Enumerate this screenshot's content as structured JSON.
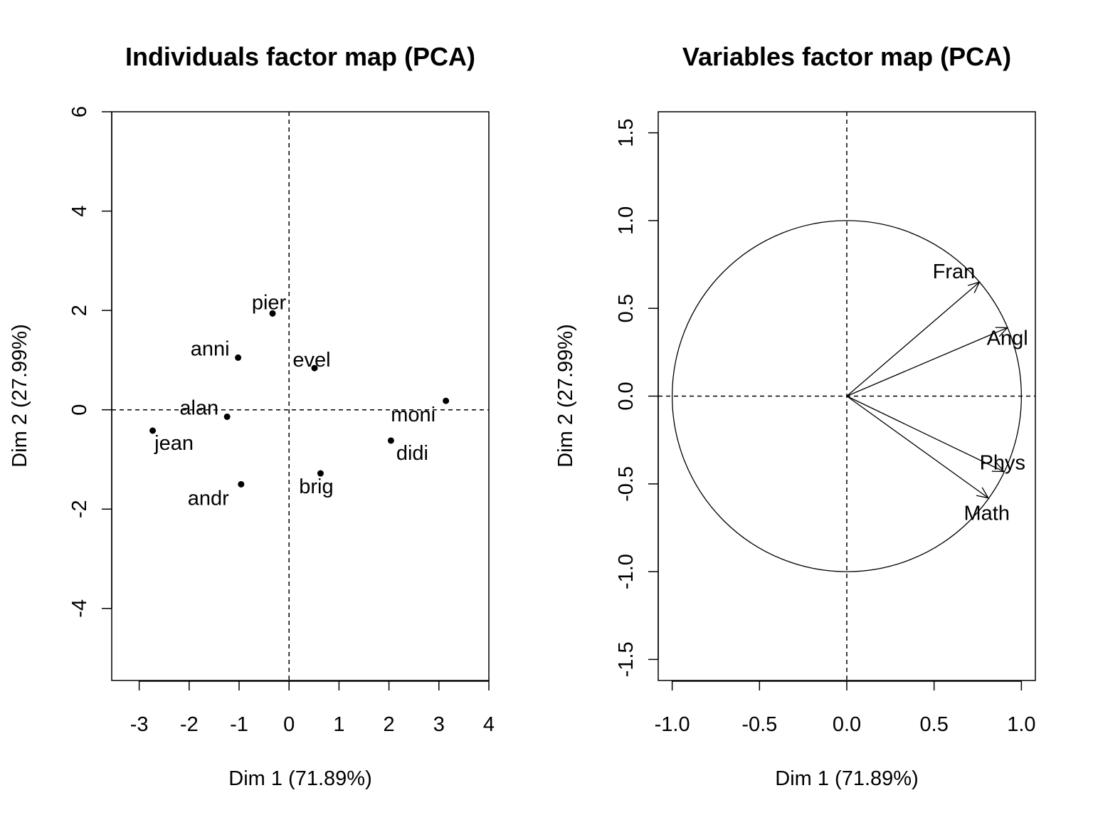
{
  "chart_data": [
    {
      "type": "scatter",
      "title": "Individuals factor map (PCA)",
      "xlabel": "Dim 1 (71.89%)",
      "ylabel": "Dim 2 (27.99%)",
      "xlim": [
        -3.55,
        4.0
      ],
      "ylim": [
        -5.45,
        6.0
      ],
      "xticks": [
        "-3",
        "-2",
        "-1",
        "0",
        "1",
        "2",
        "3",
        "4"
      ],
      "xtick_values": [
        -3,
        -2,
        -1,
        0,
        1,
        2,
        3,
        4
      ],
      "yticks": [
        "-4",
        "-2",
        "0",
        "2",
        "4",
        "6"
      ],
      "ytick_values": [
        -4,
        -2,
        0,
        2,
        4,
        6
      ],
      "reference_lines": {
        "x": 0,
        "y": 0,
        "style": "dashed"
      },
      "points": [
        {
          "label": "pier",
          "x": -0.33,
          "y": 1.94,
          "label_pos": "top-left"
        },
        {
          "label": "anni",
          "x": -1.02,
          "y": 1.05,
          "label_pos": "left"
        },
        {
          "label": "evel",
          "x": 0.51,
          "y": 0.84,
          "label_pos": "center"
        },
        {
          "label": "moni",
          "x": 3.14,
          "y": 0.18,
          "label_pos": "bottom-left"
        },
        {
          "label": "alan",
          "x": -1.24,
          "y": -0.14,
          "label_pos": "left"
        },
        {
          "label": "jean",
          "x": -2.73,
          "y": -0.42,
          "label_pos": "bottom-right"
        },
        {
          "label": "didi",
          "x": 2.04,
          "y": -0.62,
          "label_pos": "bottom-right"
        },
        {
          "label": "brig",
          "x": 0.63,
          "y": -1.28,
          "label_pos": "bottom"
        },
        {
          "label": "andr",
          "x": -0.96,
          "y": -1.5,
          "label_pos": "bottom-left"
        }
      ]
    },
    {
      "type": "vector",
      "title": "Variables factor map (PCA)",
      "xlabel": "Dim 1 (71.89%)",
      "ylabel": "Dim 2 (27.99%)",
      "xlim": [
        -1.08,
        1.08
      ],
      "ylim": [
        -1.62,
        1.62
      ],
      "xticks": [
        "-1.0",
        "-0.5",
        "0.0",
        "0.5",
        "1.0"
      ],
      "xtick_values": [
        -1.0,
        -0.5,
        0.0,
        0.5,
        1.0
      ],
      "yticks": [
        "-1.5",
        "-1.0",
        "-0.5",
        "0.0",
        "0.5",
        "1.0",
        "1.5"
      ],
      "ytick_values": [
        -1.5,
        -1.0,
        -0.5,
        0.0,
        0.5,
        1.0,
        1.5
      ],
      "reference_lines": {
        "x": 0,
        "y": 0,
        "style": "dashed"
      },
      "unit_circle": true,
      "vectors": [
        {
          "label": "Fran",
          "x": 0.76,
          "y": 0.65
        },
        {
          "label": "Angl",
          "x": 0.92,
          "y": 0.39
        },
        {
          "label": "Phys",
          "x": 0.9,
          "y": -0.43
        },
        {
          "label": "Math",
          "x": 0.81,
          "y": -0.58
        }
      ]
    }
  ]
}
